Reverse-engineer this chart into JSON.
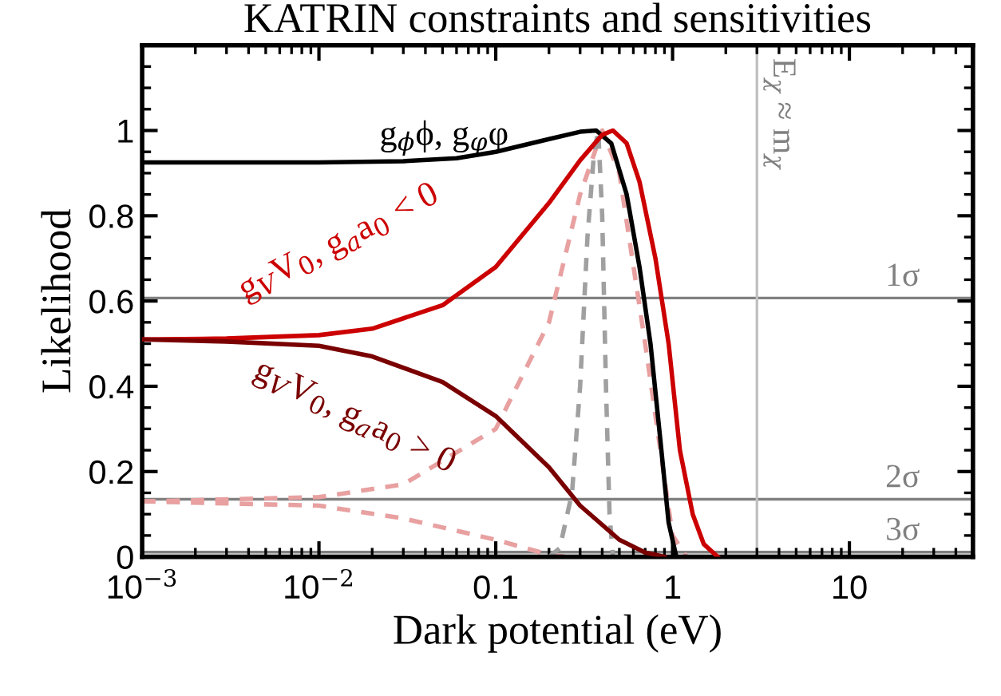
{
  "chart_data": {
    "type": "line",
    "title": "KATRIN constraints and sensitivities",
    "xlabel": "Dark potential (eV)",
    "ylabel": "Likelihood",
    "log": "x",
    "xlim": [
      0.001,
      50
    ],
    "xticks": [
      {
        "value": 0.001,
        "label": "10$^{−3}$"
      },
      {
        "value": 0.01,
        "label": "10$^{−2}$"
      },
      0.1,
      1,
      10
    ],
    "ylim": [
      0,
      1.2
    ],
    "yticks": [
      0,
      0.2,
      0.4,
      0.6,
      0.8,
      1
    ],
    "grid": false,
    "legend": false,
    "marker": "none",
    "series": [
      {
        "name": "g$_{ϕ}$ϕ, g$_{φ}$φ",
        "color": "#000000",
        "line_style": "solid",
        "x": [
          0.001,
          0.01,
          0.03,
          0.06,
          0.1,
          0.2,
          0.3,
          0.37,
          0.45,
          0.55,
          0.65,
          0.75,
          0.85,
          0.95,
          1.05
        ],
        "values": [
          0.925,
          0.925,
          0.928,
          0.935,
          0.95,
          0.98,
          0.997,
          1.0,
          0.97,
          0.85,
          0.68,
          0.5,
          0.28,
          0.08,
          0
        ]
      },
      {
        "name": "g$_{V}$V$_{0}$, g$_{a}$a$_{0}$ < 0",
        "color": "#cc0000",
        "line_style": "solid",
        "x": [
          0.001,
          0.003,
          0.01,
          0.02,
          0.05,
          0.1,
          0.2,
          0.3,
          0.4,
          0.46,
          0.55,
          0.65,
          0.8,
          0.95,
          1.1,
          1.3,
          1.5,
          1.8
        ],
        "values": [
          0.51,
          0.512,
          0.52,
          0.535,
          0.59,
          0.68,
          0.83,
          0.93,
          0.99,
          1.0,
          0.97,
          0.88,
          0.7,
          0.5,
          0.25,
          0.1,
          0.03,
          0
        ]
      },
      {
        "name": "g$_{V}$V$_{0}$, g$_{a}$a$_{0}$ > 0",
        "color": "#7a0000",
        "line_style": "solid",
        "x": [
          0.001,
          0.003,
          0.01,
          0.02,
          0.05,
          0.1,
          0.2,
          0.3,
          0.5,
          0.7,
          0.9
        ],
        "values": [
          0.51,
          0.505,
          0.495,
          0.47,
          0.41,
          0.33,
          0.21,
          0.12,
          0.04,
          0.01,
          0
        ]
      },
      {
        "color": "#e8a0a0",
        "line_style": "dashed",
        "x": [
          0.001,
          0.01,
          0.03,
          0.1,
          0.2,
          0.3,
          0.4,
          0.5,
          0.7,
          1.0,
          1.2
        ],
        "values": [
          0.13,
          0.14,
          0.17,
          0.3,
          0.55,
          0.85,
          1.0,
          0.9,
          0.5,
          0.05,
          0
        ]
      },
      {
        "color": "#e8a0a0",
        "line_style": "dashed",
        "x": [
          0.001,
          0.01,
          0.03,
          0.1,
          0.2,
          0.25
        ],
        "values": [
          0.13,
          0.12,
          0.09,
          0.04,
          0.005,
          0
        ]
      },
      {
        "color": "#a0a0a0",
        "line_style": "dashed",
        "x": [
          0.2,
          0.23,
          0.27,
          0.3,
          0.33,
          0.36,
          0.38,
          0.4,
          0.42,
          0.44,
          0.46
        ],
        "values": [
          0,
          0.02,
          0.15,
          0.4,
          0.75,
          0.95,
          1.0,
          0.8,
          0.4,
          0.1,
          0
        ]
      }
    ],
    "ref_lines": [
      {
        "axis": "y",
        "value": 0.607,
        "label": "1σ",
        "color": "#808080"
      },
      {
        "axis": "y",
        "value": 0.135,
        "label": "2σ",
        "color": "#808080"
      },
      {
        "axis": "y",
        "value": 0.011,
        "label": "3σ",
        "color": "#808080"
      },
      {
        "axis": "x",
        "value": 3,
        "label": "E$_{χ}$ ≈ m$_{χ}$",
        "color": "#c0c0c0"
      }
    ]
  }
}
